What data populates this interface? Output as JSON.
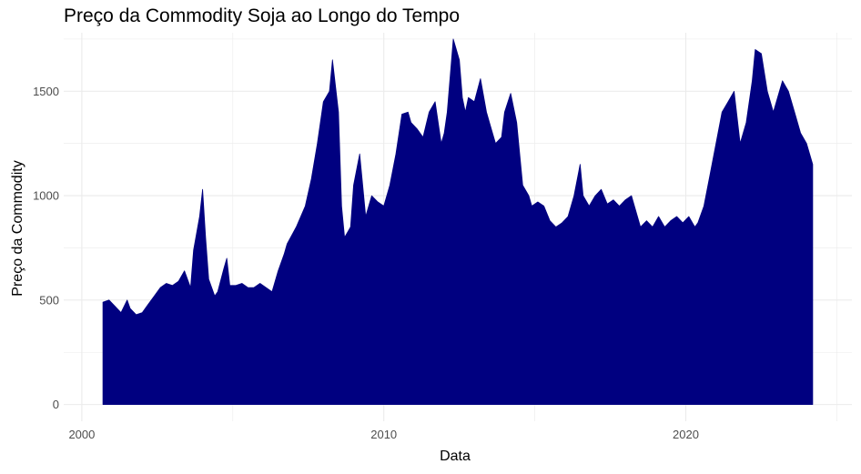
{
  "chart_data": {
    "type": "area",
    "title": "Preço da Commodity Soja ao Longo do Tempo",
    "xlabel": "Data",
    "ylabel": "Preço da Commodity",
    "x_ticks": [
      "2000",
      "2010",
      "2020"
    ],
    "x_tick_values": [
      2000,
      2010,
      2020
    ],
    "y_ticks": [
      "0",
      "500",
      "1000",
      "1500"
    ],
    "y_tick_values": [
      0,
      500,
      1000,
      1500
    ],
    "xlim": [
      1999.4,
      2025.5
    ],
    "ylim": [
      -80,
      1780
    ],
    "grid": true,
    "fill_color": "#000080",
    "grid_color": "#ebebeb",
    "series": [
      {
        "x": [
          2000.7,
          2000.9,
          2001.1,
          2001.3,
          2001.5,
          2001.6,
          2001.8,
          2002.0,
          2002.2,
          2002.4,
          2002.6,
          2002.8,
          2003.0,
          2003.2,
          2003.4,
          2003.6,
          2003.7,
          2003.9,
          2004.0,
          2004.1,
          2004.2,
          2004.4,
          2004.5,
          2004.7,
          2004.8,
          2004.9,
          2005.1,
          2005.3,
          2005.5,
          2005.7,
          2005.9,
          2006.1,
          2006.3,
          2006.5,
          2006.7,
          2006.8,
          2007.1,
          2007.4,
          2007.6,
          2007.8,
          2008.0,
          2008.2,
          2008.3,
          2008.5,
          2008.6,
          2008.7,
          2008.9,
          2009.0,
          2009.2,
          2009.4,
          2009.6,
          2009.8,
          2010.0,
          2010.2,
          2010.4,
          2010.6,
          2010.8,
          2010.9,
          2011.1,
          2011.3,
          2011.5,
          2011.7,
          2011.9,
          2012.0,
          2012.1,
          2012.3,
          2012.5,
          2012.6,
          2012.7,
          2012.8,
          2013.0,
          2013.2,
          2013.4,
          2013.5,
          2013.7,
          2013.9,
          2014.0,
          2014.2,
          2014.4,
          2014.6,
          2014.8,
          2014.9,
          2015.1,
          2015.3,
          2015.5,
          2015.7,
          2015.9,
          2016.1,
          2016.3,
          2016.5,
          2016.6,
          2016.8,
          2017.0,
          2017.2,
          2017.4,
          2017.6,
          2017.8,
          2018.0,
          2018.2,
          2018.4,
          2018.5,
          2018.7,
          2018.9,
          2019.1,
          2019.3,
          2019.5,
          2019.7,
          2019.9,
          2020.1,
          2020.3,
          2020.4,
          2020.6,
          2020.8,
          2021.0,
          2021.2,
          2021.4,
          2021.6,
          2021.8,
          2022.0,
          2022.2,
          2022.3,
          2022.5,
          2022.7,
          2022.9,
          2023.0,
          2023.2,
          2023.4,
          2023.6,
          2023.8,
          2024.0,
          2024.2
        ],
        "y": [
          490,
          500,
          470,
          440,
          500,
          460,
          430,
          440,
          480,
          520,
          560,
          580,
          570,
          590,
          640,
          560,
          740,
          900,
          1030,
          800,
          600,
          520,
          540,
          650,
          700,
          570,
          570,
          580,
          560,
          560,
          580,
          560,
          540,
          640,
          720,
          770,
          850,
          950,
          1080,
          1250,
          1450,
          1500,
          1650,
          1400,
          950,
          800,
          850,
          1050,
          1200,
          900,
          1000,
          970,
          950,
          1050,
          1200,
          1390,
          1400,
          1350,
          1320,
          1280,
          1400,
          1450,
          1250,
          1300,
          1400,
          1750,
          1650,
          1470,
          1400,
          1470,
          1450,
          1560,
          1400,
          1350,
          1250,
          1280,
          1400,
          1490,
          1350,
          1050,
          1000,
          950,
          970,
          950,
          880,
          850,
          870,
          900,
          1000,
          1150,
          1000,
          950,
          1000,
          1030,
          960,
          980,
          950,
          980,
          1000,
          900,
          850,
          880,
          850,
          900,
          850,
          880,
          900,
          870,
          900,
          850,
          870,
          950,
          1100,
          1250,
          1400,
          1450,
          1500,
          1250,
          1350,
          1550,
          1700,
          1680,
          1500,
          1400,
          1450,
          1550,
          1500,
          1400,
          1300,
          1250,
          1150
        ]
      }
    ]
  }
}
